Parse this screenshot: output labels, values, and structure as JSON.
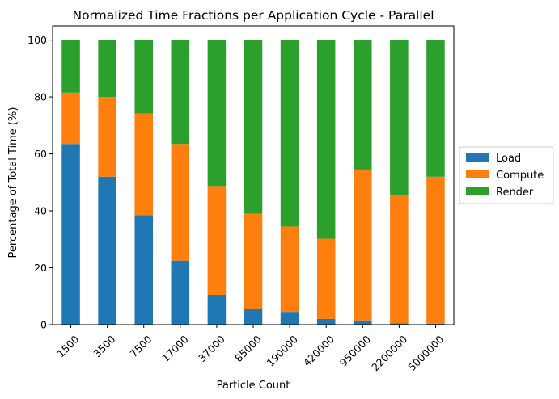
{
  "chart_data": {
    "type": "bar",
    "stacked": true,
    "title": "Normalized Time Fractions per Application Cycle - Parallel",
    "xlabel": "Particle Count",
    "ylabel": "Percentage of Total Time (%)",
    "categories": [
      "1500",
      "3500",
      "7500",
      "17000",
      "37000",
      "85000",
      "190000",
      "420000",
      "950000",
      "2200000",
      "5000000"
    ],
    "ylim": [
      0,
      105
    ],
    "yticks": [
      0,
      20,
      40,
      60,
      80,
      100
    ],
    "grid": false,
    "legend_position": "right",
    "series": [
      {
        "name": "Load",
        "color": "#1f77b4",
        "values": [
          63.5,
          52.0,
          38.5,
          22.5,
          10.5,
          5.5,
          4.5,
          2.0,
          1.5,
          0.5,
          0.3
        ]
      },
      {
        "name": "Compute",
        "color": "#ff7f0e",
        "values": [
          18.0,
          28.0,
          35.7,
          41.0,
          38.2,
          33.5,
          30.0,
          28.2,
          53.0,
          45.0,
          51.7
        ]
      },
      {
        "name": "Render",
        "color": "#2ca02c",
        "values": [
          18.5,
          20.0,
          25.8,
          36.5,
          51.3,
          61.0,
          65.5,
          69.8,
          45.5,
          54.5,
          48.0
        ]
      }
    ]
  }
}
